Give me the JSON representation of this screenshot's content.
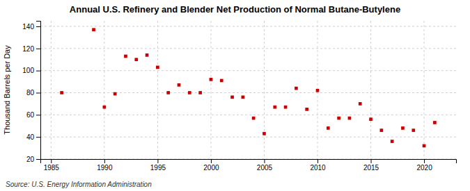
{
  "chart_data": {
    "type": "scatter",
    "title": "Annual U.S. Refinery and Blender Net Production of Normal Butane-Butylene",
    "ylabel": "Thousand Barrels per Day",
    "source": "Source: U.S. Energy Information Administration",
    "x": [
      1986,
      1989,
      1990,
      1991,
      1992,
      1993,
      1994,
      1995,
      1996,
      1997,
      1998,
      1999,
      2000,
      2001,
      2002,
      2003,
      2004,
      2005,
      2006,
      2007,
      2008,
      2009,
      2010,
      2011,
      2012,
      2013,
      2014,
      2015,
      2016,
      2017,
      2018,
      2019,
      2020,
      2021
    ],
    "values": [
      80,
      137,
      67,
      79,
      113,
      110,
      114,
      103,
      80,
      87,
      80,
      80,
      92,
      91,
      76,
      76,
      57,
      43,
      67,
      67,
      84,
      65,
      82,
      48,
      57,
      57,
      70,
      56,
      46,
      36,
      48,
      46,
      32,
      53
    ],
    "color": "#cc0000",
    "marker": "square",
    "xlim": [
      1984,
      2023
    ],
    "ylim": [
      20,
      145
    ],
    "xticks": [
      1985,
      1990,
      1995,
      2000,
      2005,
      2010,
      2015,
      2020
    ],
    "yticks": [
      20,
      40,
      60,
      80,
      100,
      120,
      140
    ],
    "grid": true
  }
}
